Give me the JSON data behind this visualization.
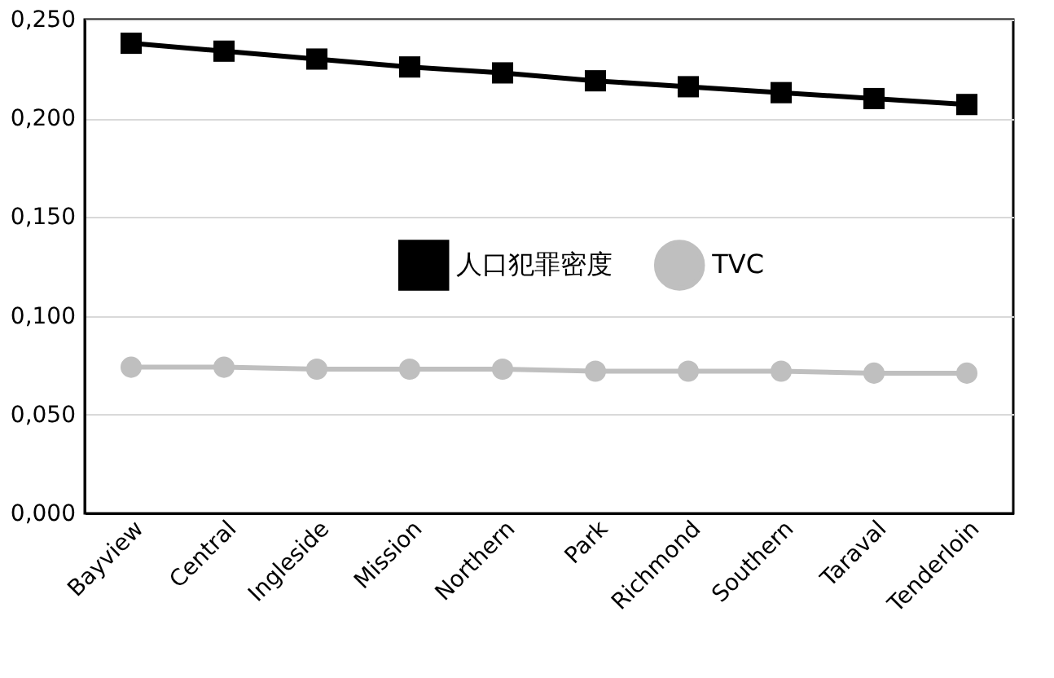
{
  "chart_data": {
    "type": "line",
    "categories": [
      "Bayview",
      "Central",
      "Ingleside",
      "Mission",
      "Northern",
      "Park",
      "Richmond",
      "Southern",
      "Taraval",
      "Tenderloin"
    ],
    "series": [
      {
        "name": "人口犯罪密度",
        "color": "#000000",
        "marker": "square",
        "values": [
          0.238,
          0.234,
          0.23,
          0.226,
          0.223,
          0.219,
          0.216,
          0.213,
          0.21,
          0.207
        ]
      },
      {
        "name": "TVC",
        "color": "#bfbfbf",
        "marker": "circle",
        "values": [
          0.074,
          0.074,
          0.073,
          0.073,
          0.073,
          0.072,
          0.072,
          0.072,
          0.071,
          0.071
        ]
      }
    ],
    "ylim": [
      0,
      0.25
    ],
    "yticks": [
      {
        "value": 0,
        "label": "0,000"
      },
      {
        "value": 0.05,
        "label": "0,050"
      },
      {
        "value": 0.1,
        "label": "0,100"
      },
      {
        "value": 0.15,
        "label": "0,150"
      },
      {
        "value": 0.2,
        "label": "0,200"
      },
      {
        "value": 0.25,
        "label": "0,250"
      }
    ],
    "grid": "y",
    "legend": "center",
    "line_style": "solid"
  }
}
